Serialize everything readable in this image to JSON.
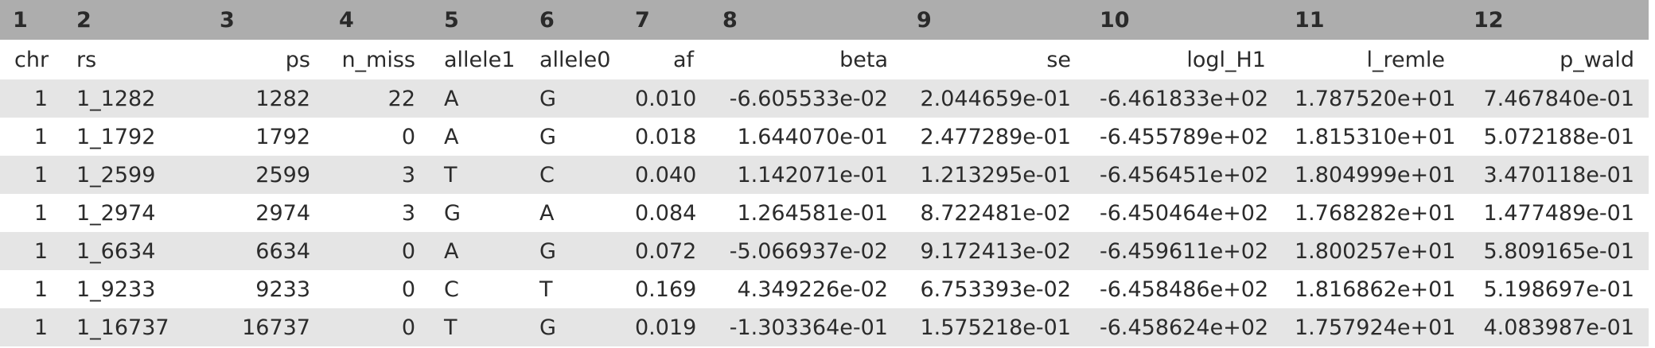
{
  "column_numbers": [
    "1",
    "2",
    "3",
    "4",
    "5",
    "6",
    "7",
    "8",
    "9",
    "10",
    "11",
    "12"
  ],
  "column_names": [
    "chr",
    "rs",
    "ps",
    "n_miss",
    "allele1",
    "allele0",
    "af",
    "beta",
    "se",
    "logl_H1",
    "l_remle",
    "p_wald"
  ],
  "rows": [
    [
      "1",
      "1_1282",
      "1282",
      "22",
      "A",
      "G",
      "0.010",
      "-6.605533e-02",
      "2.044659e-01",
      "-6.461833e+02",
      "1.787520e+01",
      "7.467840e-01"
    ],
    [
      "1",
      "1_1792",
      "1792",
      "0",
      "A",
      "G",
      "0.018",
      "1.644070e-01",
      "2.477289e-01",
      "-6.455789e+02",
      "1.815310e+01",
      "5.072188e-01"
    ],
    [
      "1",
      "1_2599",
      "2599",
      "3",
      "T",
      "C",
      "0.040",
      "1.142071e-01",
      "1.213295e-01",
      "-6.456451e+02",
      "1.804999e+01",
      "3.470118e-01"
    ],
    [
      "1",
      "1_2974",
      "2974",
      "3",
      "G",
      "A",
      "0.084",
      "1.264581e-01",
      "8.722481e-02",
      "-6.450464e+02",
      "1.768282e+01",
      "1.477489e-01"
    ],
    [
      "1",
      "1_6634",
      "6634",
      "0",
      "A",
      "G",
      "0.072",
      "-5.066937e-02",
      "9.172413e-02",
      "-6.459611e+02",
      "1.800257e+01",
      "5.809165e-01"
    ],
    [
      "1",
      "1_9233",
      "9233",
      "0",
      "C",
      "T",
      "0.169",
      "4.349226e-02",
      "6.753393e-02",
      "-6.458486e+02",
      "1.816862e+01",
      "5.198697e-01"
    ],
    [
      "1",
      "1_16737",
      "16737",
      "0",
      "T",
      "G",
      "0.019",
      "-1.303364e-01",
      "1.575218e-01",
      "-6.458624e+02",
      "1.757924e+01",
      "4.083987e-01"
    ]
  ],
  "colors": {
    "header_background": "#adadad",
    "stripe_background": "#e5e5e5",
    "text": "#2b2b2b"
  }
}
